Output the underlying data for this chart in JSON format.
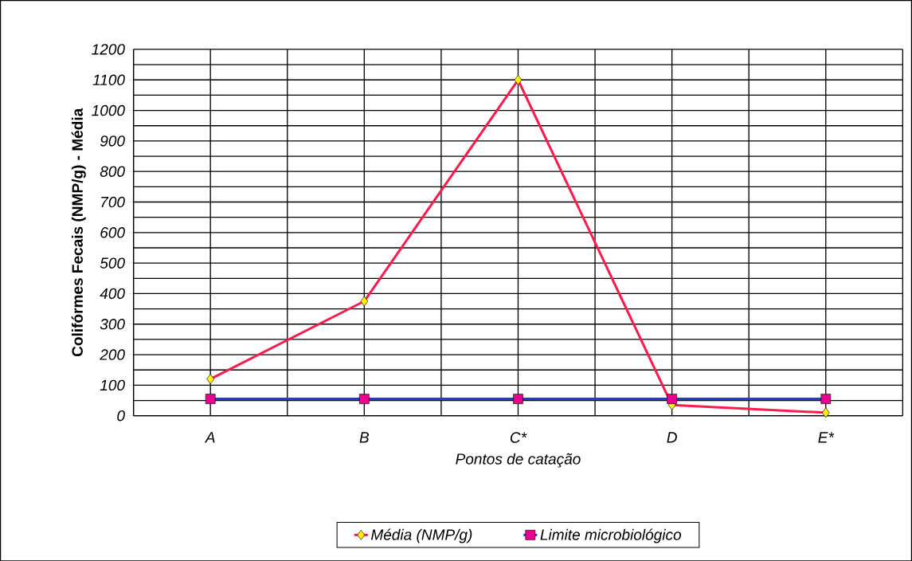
{
  "chart_data": {
    "type": "line",
    "xlabel": "Pontos de catação",
    "ylabel": "Colifórmes Fecais (NMP/g) - Média",
    "categories": [
      "A",
      "B",
      "C*",
      "D",
      "E*"
    ],
    "series": [
      {
        "name": "Média (NMP/g)",
        "color": "#ff1a4d",
        "values": [
          120,
          375,
          1100,
          35,
          10
        ],
        "marker": "diamond"
      },
      {
        "name": "Limite microbiológico",
        "color": "#1f3fd0",
        "values": [
          55,
          55,
          55,
          55,
          55
        ],
        "marker": "square"
      }
    ],
    "ylim": [
      0,
      1200
    ],
    "yticks": [
      0,
      100,
      200,
      300,
      400,
      500,
      600,
      700,
      800,
      900,
      1000,
      1100,
      1200
    ],
    "grid": true,
    "legend": "bottom",
    "line_style": "solid"
  }
}
